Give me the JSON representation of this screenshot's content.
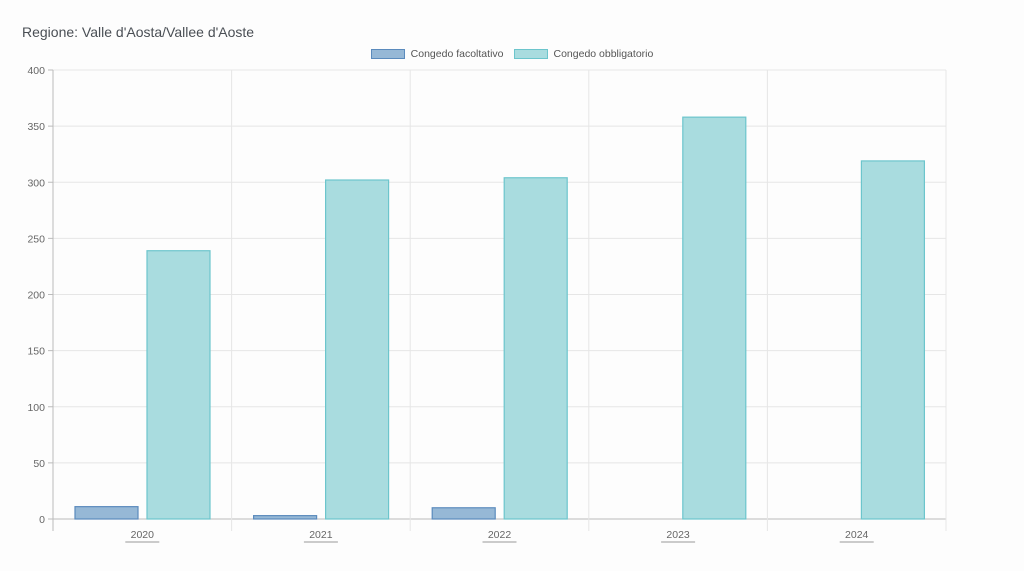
{
  "title": "Regione: Valle d'Aosta/Vallee d'Aoste",
  "chart_data": {
    "type": "bar",
    "title": "Regione: Valle d'Aosta/Vallee d'Aoste",
    "categories": [
      "2020",
      "2021",
      "2022",
      "2023",
      "2024"
    ],
    "series": [
      {
        "name": "Congedo facoltativo",
        "values": [
          11,
          3,
          10,
          0,
          0
        ],
        "color": "#96b8d6",
        "border": "#5b8bbd"
      },
      {
        "name": "Congedo obbligatorio",
        "values": [
          239,
          302,
          304,
          358,
          319
        ],
        "color": "#a9dcdf",
        "border": "#6cc5cc"
      }
    ],
    "xlabel": "",
    "ylabel": "",
    "ylim": [
      0,
      400
    ],
    "yticks": [
      "0",
      "50",
      "100",
      "150",
      "200",
      "250",
      "300",
      "350",
      "400"
    ],
    "grid": true,
    "legend": "top-center"
  }
}
